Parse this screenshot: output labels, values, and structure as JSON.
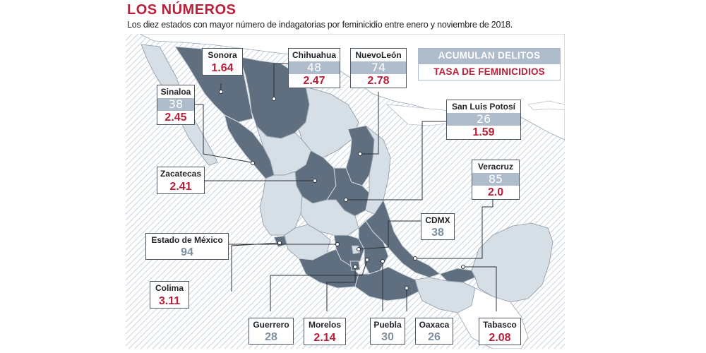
{
  "header": {
    "title": "LOS NÚMEROS",
    "subtitle": "Los diez estados con mayor número de indagatorias por feminicidio entre enero y noviembre de 2018."
  },
  "legend": {
    "accumulated_label": "ACUMULAN DELITOS",
    "rate_label": "TASA DE FEMINICIDIOS"
  },
  "colors": {
    "accent_red": "#b8203a",
    "highlight_state": "#5f6f7f",
    "other_state": "#d6dee6",
    "count_band": "#aebccb"
  },
  "states": {
    "sonora": {
      "name": "Sonora",
      "rate": "1.64"
    },
    "chihuahua": {
      "name": "Chihuahua",
      "count": "48",
      "rate": "2.47"
    },
    "nuevo_leon": {
      "name": "NuevoLeón",
      "count": "74",
      "rate": "2.78"
    },
    "sinaloa": {
      "name": "Sinaloa",
      "count": "38",
      "rate": "2.45"
    },
    "san_luis_potosi": {
      "name": "San Luis Potosí",
      "count": "26",
      "rate": "1.59"
    },
    "zacatecas": {
      "name": "Zacatecas",
      "rate": "2.41"
    },
    "veracruz": {
      "name": "Veracruz",
      "count": "85",
      "rate": "2.0"
    },
    "cdmx": {
      "name": "CDMX",
      "count": "38"
    },
    "estado_de_mexico": {
      "name": "Estado de México",
      "count": "94"
    },
    "colima": {
      "name": "Colima",
      "rate": "3.11"
    },
    "guerrero": {
      "name": "Guerrero",
      "count": "28"
    },
    "morelos": {
      "name": "Morelos",
      "rate": "2.14"
    },
    "puebla": {
      "name": "Puebla",
      "count": "30"
    },
    "oaxaca": {
      "name": "Oaxaca",
      "count": "26"
    },
    "tabasco": {
      "name": "Tabasco",
      "rate": "2.08"
    }
  }
}
